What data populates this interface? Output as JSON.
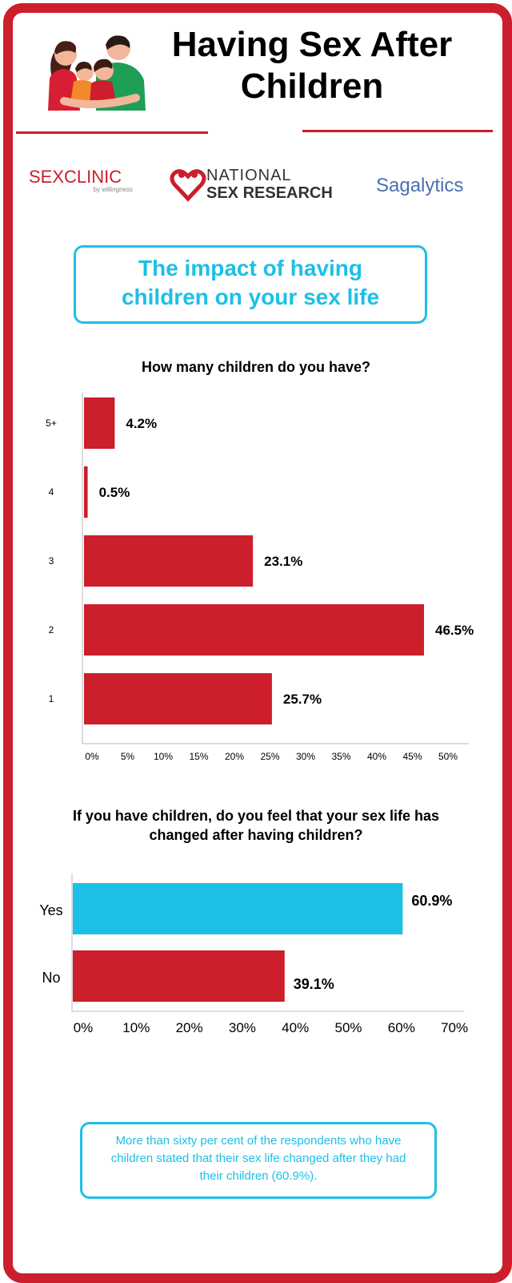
{
  "title": "Having Sex After Children",
  "logos": {
    "sexclinic_main_a": "SEX",
    "sexclinic_main_b": "CLINIC",
    "sexclinic_sub": "by willingness",
    "nsr_line1": "NATIONAL",
    "nsr_line2": "SEX RESEARCH",
    "sagalytics": "Sagalytics"
  },
  "section_title": "The impact of having children on your sex life",
  "colors": {
    "red": "#cc1e2b",
    "cyan": "#1cc0e5"
  },
  "chart_data": [
    {
      "type": "bar",
      "orientation": "horizontal",
      "title": "How many children do you have?",
      "categories": [
        "5+",
        "4",
        "3",
        "2",
        "1"
      ],
      "values": [
        4.2,
        0.5,
        23.1,
        46.5,
        25.7
      ],
      "labels": [
        "4.2%",
        "0.5%",
        "23.1%",
        "46.5%",
        "25.7%"
      ],
      "xlim": [
        0,
        50
      ],
      "ticks": [
        "0%",
        "5%",
        "10%",
        "15%",
        "20%",
        "25%",
        "30%",
        "35%",
        "40%",
        "45%",
        "50%"
      ],
      "grid": false,
      "legend": "none"
    },
    {
      "type": "bar",
      "orientation": "horizontal",
      "title": "If you have children, do you feel that your sex life has changed after having children?",
      "categories": [
        "Yes",
        "No"
      ],
      "values": [
        60.9,
        39.1
      ],
      "labels": [
        "60.9%",
        "39.1%"
      ],
      "bar_colors": [
        "#1cc0e5",
        "#cc1e2b"
      ],
      "xlim": [
        0,
        70
      ],
      "ticks": [
        "0%",
        "10%",
        "20%",
        "30%",
        "40%",
        "50%",
        "60%",
        "70%"
      ],
      "grid": false,
      "legend": "none"
    }
  ],
  "note": "More than sixty per cent of the respondents who have children stated that their sex life changed after they had their children (60.9%)."
}
